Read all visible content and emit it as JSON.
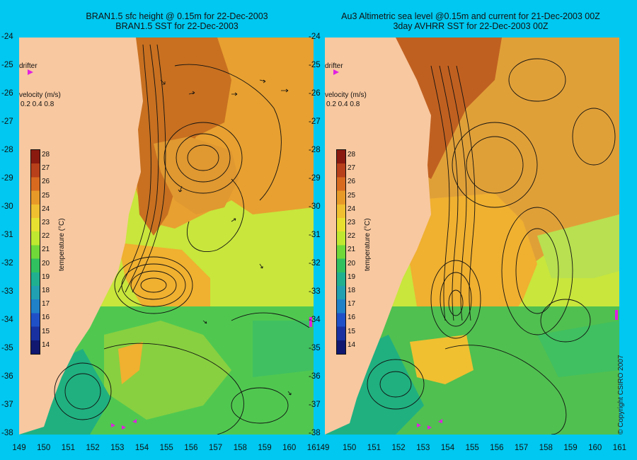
{
  "left": {
    "title_line1": "BRAN1.5 sfc height @ 0.15m for 22-Dec-2003",
    "title_line2": "BRAN1.5 SST for 22-Dec-2003",
    "drifter_label": "drifter",
    "velocity_label": "velocity (m/s)",
    "velocity_scale": "0.2 0.4 0.8",
    "colorbar_title": "temperature (°C)"
  },
  "right": {
    "title_line1": "Au3 Altimetric sea level  @0.15m and current for 21-Dec-2003 00Z",
    "title_line2": "3day AVHRR SST for 22-Dec-2003 00Z",
    "drifter_label": "drifter",
    "velocity_label": "velocity (m/s)",
    "velocity_scale": "0.2 0.4 0.8",
    "colorbar_title": "temperature (°C)"
  },
  "axes": {
    "lat_labels": [
      "-24",
      "-25",
      "-26",
      "-27",
      "-28",
      "-29",
      "-30",
      "-31",
      "-32",
      "-33",
      "-34",
      "-35",
      "-36",
      "-37",
      "-38"
    ],
    "lon_labels_left": [
      "149",
      "150",
      "151",
      "152",
      "153",
      "154",
      "155",
      "156",
      "157",
      "158",
      "159",
      "160",
      "161"
    ],
    "lon_labels_right": [
      "49",
      "150",
      "151",
      "152",
      "153",
      "154",
      "155",
      "156",
      "157",
      "158",
      "159",
      "160",
      "161"
    ]
  },
  "colorbar": {
    "ticks": [
      "28",
      "27",
      "26",
      "25",
      "24",
      "23",
      "22",
      "21",
      "20",
      "19",
      "18",
      "17",
      "16",
      "15",
      "14"
    ],
    "colors": [
      "#8a1a10",
      "#b8401a",
      "#d86a20",
      "#e89a28",
      "#f0c030",
      "#e8e030",
      "#c0e830",
      "#70d838",
      "#30c060",
      "#20b090",
      "#20a0b0",
      "#2080c8",
      "#2050c8",
      "#1830a0",
      "#101870"
    ]
  },
  "copyright": "© Copyright CSIRO 2007",
  "map_colors": {
    "land": "#f8c8a0",
    "ocean_bg": "#00c8f0",
    "contour": "#111111",
    "drifter": "#e020e0"
  }
}
